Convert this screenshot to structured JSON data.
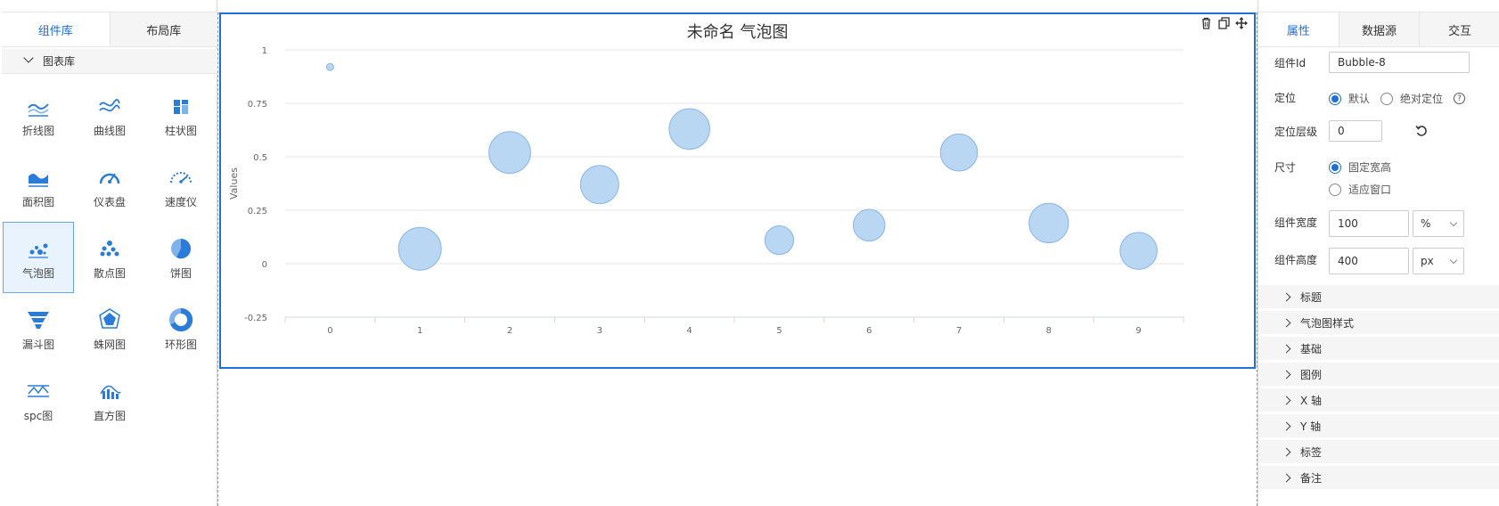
{
  "left_panel": {
    "tabs": [
      {
        "label": "组件库",
        "active": true
      },
      {
        "label": "布局库",
        "active": false
      }
    ],
    "library_header": "图表库",
    "components": [
      {
        "label": "折线图",
        "icon": "line-chart-icon"
      },
      {
        "label": "曲线图",
        "icon": "curve-chart-icon"
      },
      {
        "label": "柱状图",
        "icon": "bar-chart-icon"
      },
      {
        "label": "面积图",
        "icon": "area-chart-icon"
      },
      {
        "label": "仪表盘",
        "icon": "gauge-icon"
      },
      {
        "label": "速度仪",
        "icon": "speedometer-icon"
      },
      {
        "label": "气泡图",
        "icon": "bubble-chart-icon",
        "selected": true
      },
      {
        "label": "散点图",
        "icon": "scatter-chart-icon"
      },
      {
        "label": "饼图",
        "icon": "pie-chart-icon"
      },
      {
        "label": "漏斗图",
        "icon": "funnel-chart-icon"
      },
      {
        "label": "蛛网图",
        "icon": "radar-chart-icon"
      },
      {
        "label": "环形图",
        "icon": "donut-chart-icon"
      },
      {
        "label": "spc图",
        "icon": "spc-chart-icon"
      },
      {
        "label": "直方图",
        "icon": "histogram-icon"
      }
    ]
  },
  "canvas": {
    "chart_title": "未命名 气泡图",
    "toolbar_icons": [
      "trash-icon",
      "copy-icon",
      "move-icon"
    ]
  },
  "chart_data": {
    "type": "scatter",
    "subtype": "bubble",
    "title": "未命名 气泡图",
    "xlabel": "",
    "ylabel": "Values",
    "x": [
      0,
      1,
      2,
      3,
      4,
      5,
      6,
      7,
      8,
      9
    ],
    "y": [
      0.92,
      0.07,
      0.52,
      0.37,
      0.63,
      0.11,
      0.18,
      0.52,
      0.19,
      0.06
    ],
    "size": [
      1,
      10,
      9.5,
      8,
      9,
      4.5,
      5.5,
      7.5,
      8.5,
      7.5
    ],
    "ylim": [
      -0.25,
      1
    ],
    "yticks": [
      1,
      0.75,
      0.5,
      0.25,
      0,
      -0.25
    ],
    "ytick_labels": [
      "1",
      "0.75",
      "0.5",
      "0.25",
      "0",
      "-0.25"
    ],
    "xtick_labels": [
      "0",
      "1",
      "2",
      "3",
      "4",
      "5",
      "6",
      "7",
      "8",
      "9"
    ],
    "grid": true,
    "bubble_fill": "#b9d6f2",
    "bubble_stroke": "#8ab6e4"
  },
  "right_panel": {
    "tabs": [
      {
        "label": "属性",
        "active": true
      },
      {
        "label": "数据源",
        "active": false
      },
      {
        "label": "交互",
        "active": false
      }
    ],
    "component_id": {
      "label": "组件Id",
      "value": "Bubble-8"
    },
    "position": {
      "label": "定位",
      "options": [
        "默认",
        "绝对定位"
      ],
      "selected": "默认",
      "help_icon": "help-icon"
    },
    "z_index": {
      "label": "定位层级",
      "value": "0",
      "reset_icon": "reset-icon"
    },
    "size": {
      "label": "尺寸",
      "options": [
        "固定宽高",
        "适应窗口"
      ],
      "selected": "固定宽高"
    },
    "width": {
      "label": "组件宽度",
      "value": "100",
      "unit": "%"
    },
    "height": {
      "label": "组件高度",
      "value": "400",
      "unit": "px"
    },
    "sections": [
      "标题",
      "气泡图样式",
      "基础",
      "图例",
      "X 轴",
      "Y 轴",
      "标签",
      "备注"
    ]
  },
  "colors": {
    "accent": "#1e6fd9",
    "bubble": "#b9d6f2"
  }
}
